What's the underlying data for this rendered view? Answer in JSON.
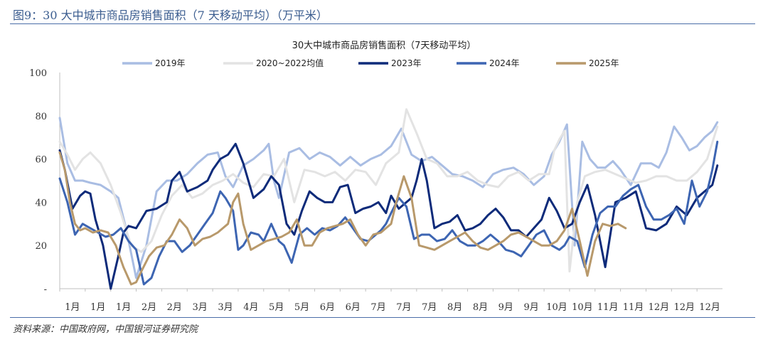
{
  "page": {
    "figure_title": "图9：30 大中城市商品房销售面积（7 天移动平均）（万平米）",
    "source": "资料来源：中国政府网，中国银河证券研究院"
  },
  "chart_data": {
    "type": "line",
    "title": "30大中城市商品房销售面积（7天移动平均）",
    "xlabel": "",
    "ylabel": "",
    "ylim": [
      0,
      100
    ],
    "yticks": [
      0,
      20,
      40,
      60,
      80,
      100
    ],
    "ytick_labels": [
      "-",
      "20",
      "40",
      "60",
      "80",
      "100"
    ],
    "xtick_labels": [
      "1月",
      "1月",
      "1月",
      "2月",
      "2月",
      "3月",
      "3月",
      "4月",
      "5月",
      "5月",
      "6月",
      "6月",
      "7月",
      "7月",
      "7月",
      "8月",
      "8月",
      "9月",
      "9月",
      "10月",
      "10月",
      "11月",
      "11月",
      "12月",
      "12月",
      "12月"
    ],
    "x_range": [
      0,
      26
    ],
    "legend_position": "top",
    "series": [
      {
        "name": "2019年",
        "color": "#a9bde3",
        "width": 3,
        "x": [
          0,
          0.1,
          0.3,
          0.6,
          0.9,
          1.2,
          1.6,
          2.0,
          2.3,
          2.6,
          3.0,
          3.4,
          3.8,
          4.2,
          4.6,
          5.0,
          5.4,
          5.8,
          6.2,
          6.5,
          6.8,
          7.2,
          7.6,
          8.0,
          8.2,
          8.4,
          8.6,
          9.0,
          9.4,
          9.8,
          10.2,
          10.6,
          11.0,
          11.4,
          11.8,
          12.2,
          12.6,
          13.0,
          13.4,
          13.8,
          14.2,
          14.6,
          15.0,
          15.4,
          15.8,
          16.2,
          16.6,
          17.0,
          17.4,
          17.8,
          18.2,
          18.6,
          19.0,
          19.3,
          19.6,
          19.9,
          20.2,
          20.5,
          20.8,
          21.1,
          21.4,
          21.7,
          22.0,
          22.4,
          22.8,
          23.2,
          23.5,
          23.8,
          24.1,
          24.4,
          24.7,
          25.0,
          25.3,
          25.6,
          25.8
        ],
        "y": [
          79,
          72,
          58,
          50,
          50,
          49,
          48,
          45,
          42,
          28,
          5,
          20,
          45,
          50,
          50,
          53,
          58,
          62,
          63,
          52,
          47,
          57,
          60,
          64,
          67,
          50,
          42,
          63,
          65,
          60,
          63,
          61,
          57,
          61,
          57,
          60,
          62,
          66,
          74,
          62,
          59,
          61,
          57,
          53,
          52,
          50,
          47,
          53,
          55,
          56,
          53,
          48,
          52,
          62,
          68,
          76,
          20,
          68,
          60,
          56,
          56,
          59,
          55,
          48,
          58,
          58,
          56,
          63,
          75,
          70,
          64,
          66,
          70,
          73,
          77
        ]
      },
      {
        "name": "2020~2022均值",
        "color": "#e3e3e3",
        "width": 3,
        "x": [
          0,
          0.3,
          0.6,
          0.9,
          1.2,
          1.6,
          2.0,
          2.4,
          2.8,
          3.2,
          3.6,
          4.0,
          4.4,
          4.8,
          5.2,
          5.6,
          6.0,
          6.4,
          6.8,
          7.2,
          7.6,
          8.0,
          8.4,
          8.8,
          9.2,
          9.6,
          10.0,
          10.4,
          10.8,
          11.2,
          11.6,
          12.0,
          12.4,
          12.8,
          13.0,
          13.3,
          13.6,
          14.0,
          14.4,
          14.8,
          15.2,
          15.6,
          16.0,
          16.4,
          16.8,
          17.2,
          17.6,
          18.0,
          18.4,
          18.8,
          19.2,
          19.4,
          19.6,
          19.8,
          20.0,
          20.3,
          20.6,
          21.0,
          21.4,
          21.8,
          22.2,
          22.6,
          23.0,
          23.4,
          23.8,
          24.2,
          24.6,
          25.0,
          25.4,
          25.8
        ],
        "y": [
          68,
          62,
          55,
          60,
          63,
          58,
          48,
          35,
          20,
          17,
          22,
          34,
          43,
          48,
          42,
          44,
          48,
          50,
          53,
          49,
          47,
          53,
          52,
          60,
          40,
          55,
          54,
          52,
          54,
          50,
          55,
          54,
          48,
          58,
          60,
          63,
          83,
          72,
          60,
          58,
          52,
          52,
          54,
          50,
          48,
          47,
          52,
          54,
          50,
          53,
          53,
          64,
          69,
          73,
          8,
          40,
          52,
          54,
          55,
          53,
          51,
          49,
          50,
          52,
          52,
          50,
          50,
          54,
          60,
          75
        ]
      },
      {
        "name": "2023年",
        "color": "#0e2b7a",
        "width": 3,
        "x": [
          0,
          0.2,
          0.5,
          0.8,
          1.0,
          1.2,
          1.4,
          1.7,
          2.0,
          2.3,
          2.5,
          2.7,
          3.0,
          3.4,
          3.8,
          4.2,
          4.4,
          4.7,
          5.0,
          5.4,
          5.8,
          6.0,
          6.3,
          6.6,
          6.9,
          7.2,
          7.6,
          8.0,
          8.3,
          8.6,
          8.9,
          9.2,
          9.5,
          9.8,
          10.1,
          10.4,
          10.7,
          11.0,
          11.3,
          11.6,
          11.9,
          12.2,
          12.5,
          12.8,
          13.0,
          13.3,
          13.6,
          13.8,
          14.0,
          14.2,
          14.4,
          14.7,
          15.0,
          15.3,
          15.6,
          15.9,
          16.2,
          16.5,
          16.8,
          17.1,
          17.4,
          17.7,
          18.0,
          18.3,
          18.6,
          18.9,
          19.2,
          19.5,
          19.8,
          20.1,
          20.4,
          20.7,
          21.0,
          21.4,
          21.8,
          22.2,
          22.6,
          23.0,
          23.4,
          23.8,
          24.2,
          24.6,
          25.0,
          25.3,
          25.6,
          25.8
        ],
        "y": [
          64,
          55,
          37,
          43,
          45,
          44,
          32,
          20,
          0,
          15,
          26,
          29,
          28,
          36,
          37,
          40,
          50,
          54,
          45,
          47,
          50,
          55,
          60,
          62,
          67,
          58,
          42,
          46,
          52,
          48,
          30,
          25,
          36,
          45,
          42,
          40,
          40,
          47,
          48,
          35,
          37,
          38,
          40,
          35,
          43,
          37,
          40,
          42,
          50,
          60,
          50,
          28,
          30,
          31,
          34,
          27,
          28,
          30,
          34,
          37,
          33,
          27,
          27,
          24,
          28,
          32,
          42,
          36,
          28,
          30,
          40,
          48,
          34,
          10,
          40,
          42,
          45,
          28,
          27,
          30,
          38,
          34,
          42,
          45,
          48,
          57
        ]
      },
      {
        "name": "2024年",
        "color": "#3d65b2",
        "width": 3,
        "x": [
          0,
          0.3,
          0.6,
          0.9,
          1.2,
          1.5,
          1.8,
          2.1,
          2.4,
          2.7,
          3.0,
          3.3,
          3.6,
          3.9,
          4.2,
          4.5,
          4.8,
          5.1,
          5.4,
          5.7,
          6.0,
          6.3,
          6.5,
          6.8,
          7.0,
          7.2,
          7.5,
          7.8,
          8.0,
          8.3,
          8.6,
          8.8,
          9.1,
          9.4,
          9.7,
          10.0,
          10.3,
          10.6,
          10.9,
          11.2,
          11.5,
          11.8,
          12.1,
          12.4,
          12.6,
          12.8,
          13.0,
          13.3,
          13.6,
          13.9,
          14.2,
          14.5,
          14.8,
          15.1,
          15.4,
          15.7,
          16.0,
          16.3,
          16.6,
          16.9,
          17.2,
          17.5,
          17.8,
          18.1,
          18.4,
          18.7,
          19.0,
          19.3,
          19.6,
          19.8,
          20.0,
          20.3,
          20.6,
          20.9,
          21.2,
          21.5,
          21.8,
          22.1,
          22.4,
          22.7,
          23.0,
          23.3,
          23.6,
          23.9,
          24.2,
          24.5,
          24.8,
          25.1,
          25.4,
          25.6,
          25.8
        ],
        "y": [
          51,
          40,
          25,
          30,
          28,
          26,
          24,
          25,
          28,
          22,
          18,
          2,
          5,
          15,
          22,
          22,
          17,
          20,
          25,
          30,
          35,
          45,
          42,
          36,
          18,
          20,
          26,
          25,
          22,
          30,
          22,
          20,
          12,
          25,
          28,
          25,
          28,
          27,
          29,
          33,
          28,
          23,
          22,
          25,
          27,
          30,
          35,
          42,
          38,
          23,
          25,
          25,
          22,
          23,
          27,
          22,
          20,
          20,
          22,
          25,
          22,
          18,
          17,
          15,
          20,
          25,
          27,
          20,
          18,
          20,
          24,
          22,
          10,
          25,
          35,
          38,
          38,
          43,
          46,
          48,
          38,
          32,
          32,
          34,
          37,
          30,
          50,
          38,
          45,
          55,
          68
        ]
      },
      {
        "name": "2025年",
        "color": "#b8996b",
        "width": 3,
        "x": [
          0,
          0.2,
          0.4,
          0.6,
          0.8,
          1.0,
          1.3,
          1.6,
          1.9,
          2.2,
          2.5,
          2.8,
          3.0,
          3.2,
          3.5,
          3.8,
          4.1,
          4.4,
          4.7,
          5.0,
          5.3,
          5.6,
          5.9,
          6.2,
          6.4,
          6.6,
          6.8,
          7.0,
          7.2,
          7.5,
          7.8,
          8.1,
          8.4,
          8.7,
          9.0,
          9.3,
          9.6,
          9.9,
          10.2,
          10.5,
          10.8,
          11.1,
          11.4,
          11.7,
          12.0,
          12.3,
          12.6,
          12.8,
          13.0,
          13.2,
          13.5,
          13.8,
          14.1,
          14.4,
          14.7,
          15.0,
          15.3,
          15.6,
          15.9,
          16.2,
          16.5,
          16.8,
          17.1,
          17.4,
          17.7,
          18.0,
          18.3,
          18.6,
          18.9,
          19.2,
          19.5,
          19.8,
          20.1,
          20.4,
          20.7,
          21.0,
          21.3,
          21.6,
          21.9,
          22.2
        ],
        "y": [
          63,
          55,
          40,
          30,
          27,
          28,
          26,
          27,
          26,
          20,
          10,
          2,
          3,
          8,
          15,
          19,
          20,
          25,
          32,
          28,
          20,
          23,
          24,
          26,
          28,
          30,
          40,
          44,
          30,
          18,
          20,
          22,
          23,
          24,
          26,
          32,
          20,
          20,
          26,
          28,
          29,
          30,
          32,
          25,
          20,
          25,
          26,
          28,
          30,
          40,
          52,
          42,
          20,
          19,
          18,
          20,
          22,
          24,
          26,
          22,
          19,
          18,
          20,
          22,
          25,
          26,
          24,
          22,
          20,
          20,
          22,
          27,
          37,
          22,
          6,
          22,
          30,
          29,
          30,
          28
        ]
      }
    ]
  }
}
